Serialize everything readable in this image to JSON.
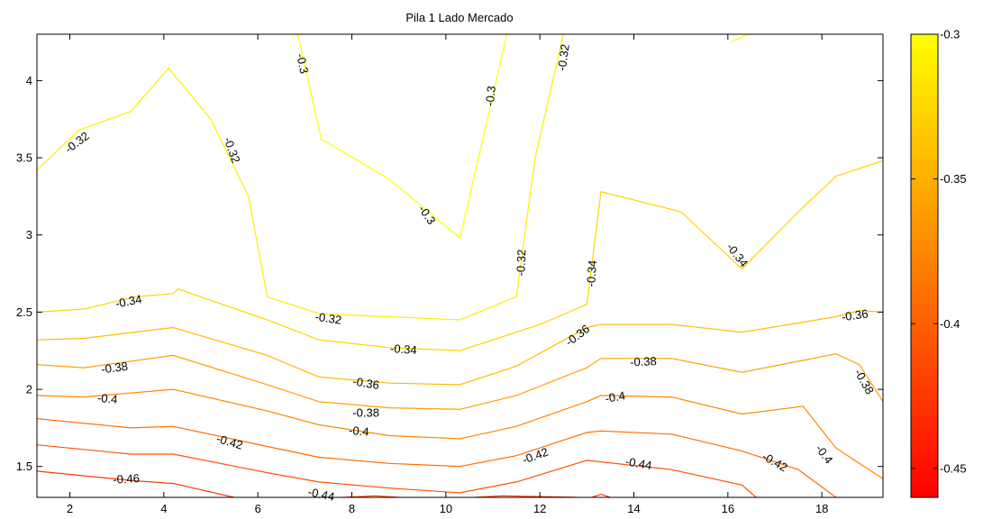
{
  "chart_data": {
    "type": "contour",
    "title": "Pila 1 Lado Mercado",
    "xlabel": "",
    "ylabel": "",
    "xlim": [
      1.3,
      19.3
    ],
    "ylim": [
      1.3,
      4.3
    ],
    "x_ticks": [
      2,
      4,
      6,
      8,
      10,
      12,
      14,
      16,
      18
    ],
    "x_tick_labels": [
      "2",
      "4",
      "6",
      "8",
      "10",
      "12",
      "14",
      "16",
      "18"
    ],
    "y_ticks": [
      1.5,
      2,
      2.5,
      3,
      3.5,
      4
    ],
    "y_tick_labels": [
      "1.5",
      "2",
      "2.5",
      "3",
      "3.5",
      "4"
    ],
    "grid": false,
    "colormap": "autumn",
    "colorbar": {
      "min": -0.46,
      "max": -0.3,
      "ticks": [
        -0.3,
        -0.35,
        -0.4,
        -0.45
      ],
      "tick_labels": [
        "-0.3",
        "-0.35",
        "-0.4",
        "-0.45"
      ],
      "color_low": "#ff0000",
      "color_high": "#ffff00"
    },
    "series": [
      {
        "level": -0.3,
        "color": "#ffff00",
        "segments": [
          [
            [
              6.85,
              4.3
            ],
            [
              7.35,
              3.62
            ],
            [
              8.8,
              3.36
            ],
            [
              10.3,
              2.98
            ],
            [
              11.3,
              4.3
            ]
          ],
          [
            [
              16.05,
              4.25
            ],
            [
              16.45,
              4.3
            ]
          ]
        ]
      },
      {
        "level": -0.32,
        "color": "#ffee00",
        "segments": [
          [
            [
              1.3,
              3.42
            ],
            [
              2.2,
              3.68
            ],
            [
              3.3,
              3.8
            ],
            [
              4.1,
              4.08
            ],
            [
              5.0,
              3.75
            ],
            [
              5.8,
              3.25
            ],
            [
              6.2,
              2.6
            ],
            [
              7.3,
              2.49
            ],
            [
              8.8,
              2.47
            ],
            [
              10.3,
              2.45
            ],
            [
              11.5,
              2.6
            ],
            [
              11.9,
              3.5
            ],
            [
              12.5,
              4.3
            ]
          ]
        ]
      },
      {
        "level": -0.34,
        "color": "#ffd400",
        "segments": [
          [
            [
              1.3,
              2.5
            ],
            [
              2.3,
              2.52
            ],
            [
              3.4,
              2.6
            ],
            [
              4.2,
              2.62
            ],
            [
              4.3,
              2.65
            ],
            [
              6.2,
              2.45
            ],
            [
              7.3,
              2.32
            ],
            [
              8.8,
              2.27
            ],
            [
              10.3,
              2.25
            ],
            [
              12.0,
              2.42
            ],
            [
              13.0,
              2.55
            ],
            [
              13.3,
              3.28
            ],
            [
              15.0,
              3.15
            ],
            [
              16.3,
              2.78
            ],
            [
              17.5,
              3.15
            ],
            [
              18.3,
              3.38
            ],
            [
              19.3,
              3.48
            ]
          ]
        ]
      },
      {
        "level": -0.36,
        "color": "#ffba00",
        "segments": [
          [
            [
              1.3,
              2.32
            ],
            [
              2.3,
              2.33
            ],
            [
              4.2,
              2.4
            ],
            [
              6.2,
              2.22
            ],
            [
              7.3,
              2.08
            ],
            [
              8.8,
              2.04
            ],
            [
              10.3,
              2.03
            ],
            [
              11.5,
              2.15
            ],
            [
              13.0,
              2.4
            ],
            [
              13.3,
              2.42
            ],
            [
              14.8,
              2.42
            ],
            [
              16.3,
              2.37
            ],
            [
              18.3,
              2.47
            ],
            [
              18.8,
              2.51
            ],
            [
              19.3,
              2.5
            ]
          ]
        ]
      },
      {
        "level": -0.38,
        "color": "#ffa000",
        "segments": [
          [
            [
              1.3,
              2.16
            ],
            [
              2.3,
              2.14
            ],
            [
              4.2,
              2.22
            ],
            [
              6.2,
              2.03
            ],
            [
              7.3,
              1.92
            ],
            [
              8.8,
              1.88
            ],
            [
              10.3,
              1.87
            ],
            [
              11.5,
              1.96
            ],
            [
              13.0,
              2.14
            ],
            [
              13.3,
              2.2
            ],
            [
              14.8,
              2.2
            ],
            [
              16.3,
              2.11
            ],
            [
              18.3,
              2.23
            ],
            [
              18.8,
              2.16
            ],
            [
              19.3,
              1.92
            ]
          ]
        ]
      },
      {
        "level": -0.4,
        "color": "#ff8600",
        "segments": [
          [
            [
              1.3,
              1.96
            ],
            [
              2.3,
              1.95
            ],
            [
              4.2,
              2.0
            ],
            [
              6.2,
              1.86
            ],
            [
              7.3,
              1.77
            ],
            [
              8.8,
              1.7
            ],
            [
              10.3,
              1.68
            ],
            [
              11.5,
              1.76
            ],
            [
              13.0,
              1.92
            ],
            [
              13.3,
              1.96
            ],
            [
              14.8,
              1.95
            ],
            [
              16.3,
              1.84
            ],
            [
              17.6,
              1.89
            ],
            [
              18.3,
              1.62
            ],
            [
              19.3,
              1.42
            ]
          ]
        ]
      },
      {
        "level": -0.42,
        "color": "#ff6c00",
        "segments": [
          [
            [
              1.3,
              1.81
            ],
            [
              3.3,
              1.75
            ],
            [
              4.2,
              1.76
            ],
            [
              6.2,
              1.63
            ],
            [
              7.3,
              1.56
            ],
            [
              8.8,
              1.52
            ],
            [
              10.3,
              1.5
            ],
            [
              11.5,
              1.57
            ],
            [
              13.0,
              1.72
            ],
            [
              13.3,
              1.73
            ],
            [
              14.8,
              1.71
            ],
            [
              16.3,
              1.6
            ],
            [
              17.5,
              1.48
            ],
            [
              18.3,
              1.3
            ]
          ]
        ]
      },
      {
        "level": -0.44,
        "color": "#ff5200",
        "segments": [
          [
            [
              1.3,
              1.64
            ],
            [
              3.3,
              1.58
            ],
            [
              4.2,
              1.58
            ],
            [
              6.2,
              1.46
            ],
            [
              7.3,
              1.4
            ],
            [
              8.8,
              1.36
            ],
            [
              10.3,
              1.33
            ],
            [
              11.5,
              1.4
            ],
            [
              13.0,
              1.54
            ],
            [
              14.8,
              1.48
            ],
            [
              16.3,
              1.38
            ],
            [
              16.6,
              1.3
            ]
          ]
        ]
      },
      {
        "level": -0.46,
        "color": "#ff3800",
        "segments": [
          [
            [
              1.3,
              1.47
            ],
            [
              3.3,
              1.41
            ],
            [
              4.2,
              1.39
            ],
            [
              5.5,
              1.3
            ]
          ],
          [
            [
              7.8,
              1.3
            ],
            [
              8.5,
              1.31
            ],
            [
              9.0,
              1.3
            ]
          ],
          [
            [
              10.6,
              1.3
            ],
            [
              11.2,
              1.31
            ],
            [
              12.8,
              1.3
            ]
          ],
          [
            [
              13.1,
              1.3
            ],
            [
              13.3,
              1.32
            ],
            [
              13.5,
              1.3
            ]
          ]
        ]
      }
    ],
    "annotations": [
      {
        "text": "-0.3",
        "x": 6.95,
        "y": 4.11,
        "angle": 78
      },
      {
        "text": "-0.3",
        "x": 9.6,
        "y": 3.13,
        "angle": 55
      },
      {
        "text": "-0.3",
        "x": 10.95,
        "y": 3.9,
        "angle": -85
      },
      {
        "text": "-0.32",
        "x": 2.15,
        "y": 3.6,
        "angle": -37
      },
      {
        "text": "-0.32",
        "x": 5.45,
        "y": 3.55,
        "angle": 70
      },
      {
        "text": "-0.32",
        "x": 7.5,
        "y": 2.46,
        "angle": 8
      },
      {
        "text": "-0.32",
        "x": 11.6,
        "y": 2.82,
        "angle": -88
      },
      {
        "text": "-0.32",
        "x": 12.5,
        "y": 4.15,
        "angle": -82
      },
      {
        "text": "-0.34",
        "x": 3.25,
        "y": 2.57,
        "angle": -11
      },
      {
        "text": "-0.34",
        "x": 9.1,
        "y": 2.26,
        "angle": 4
      },
      {
        "text": "-0.34",
        "x": 13.1,
        "y": 2.75,
        "angle": -86
      },
      {
        "text": "-0.34",
        "x": 16.2,
        "y": 2.87,
        "angle": 52
      },
      {
        "text": "-0.36",
        "x": 8.3,
        "y": 2.04,
        "angle": 9
      },
      {
        "text": "-0.36",
        "x": 12.8,
        "y": 2.35,
        "angle": -37
      },
      {
        "text": "-0.36",
        "x": 18.7,
        "y": 2.48,
        "angle": -8
      },
      {
        "text": "-0.38",
        "x": 2.95,
        "y": 2.14,
        "angle": -7
      },
      {
        "text": "-0.38",
        "x": 8.3,
        "y": 1.85,
        "angle": 0
      },
      {
        "text": "-0.38",
        "x": 14.2,
        "y": 2.18,
        "angle": -3
      },
      {
        "text": "-0.38",
        "x": 18.9,
        "y": 2.05,
        "angle": 60
      },
      {
        "text": "-0.4",
        "x": 2.8,
        "y": 1.94,
        "angle": 5
      },
      {
        "text": "-0.4",
        "x": 8.15,
        "y": 1.73,
        "angle": 5
      },
      {
        "text": "-0.4",
        "x": 13.6,
        "y": 1.95,
        "angle": -10
      },
      {
        "text": "-0.4",
        "x": 18.05,
        "y": 1.58,
        "angle": 53
      },
      {
        "text": "-0.42",
        "x": 5.4,
        "y": 1.66,
        "angle": 16
      },
      {
        "text": "-0.42",
        "x": 11.9,
        "y": 1.57,
        "angle": -20
      },
      {
        "text": "-0.42",
        "x": 17.0,
        "y": 1.53,
        "angle": 30
      },
      {
        "text": "-0.44",
        "x": 7.35,
        "y": 1.32,
        "angle": 12
      },
      {
        "text": "-0.44",
        "x": 14.1,
        "y": 1.52,
        "angle": 10
      },
      {
        "text": "-0.46",
        "x": 3.2,
        "y": 1.42,
        "angle": -3
      }
    ]
  }
}
